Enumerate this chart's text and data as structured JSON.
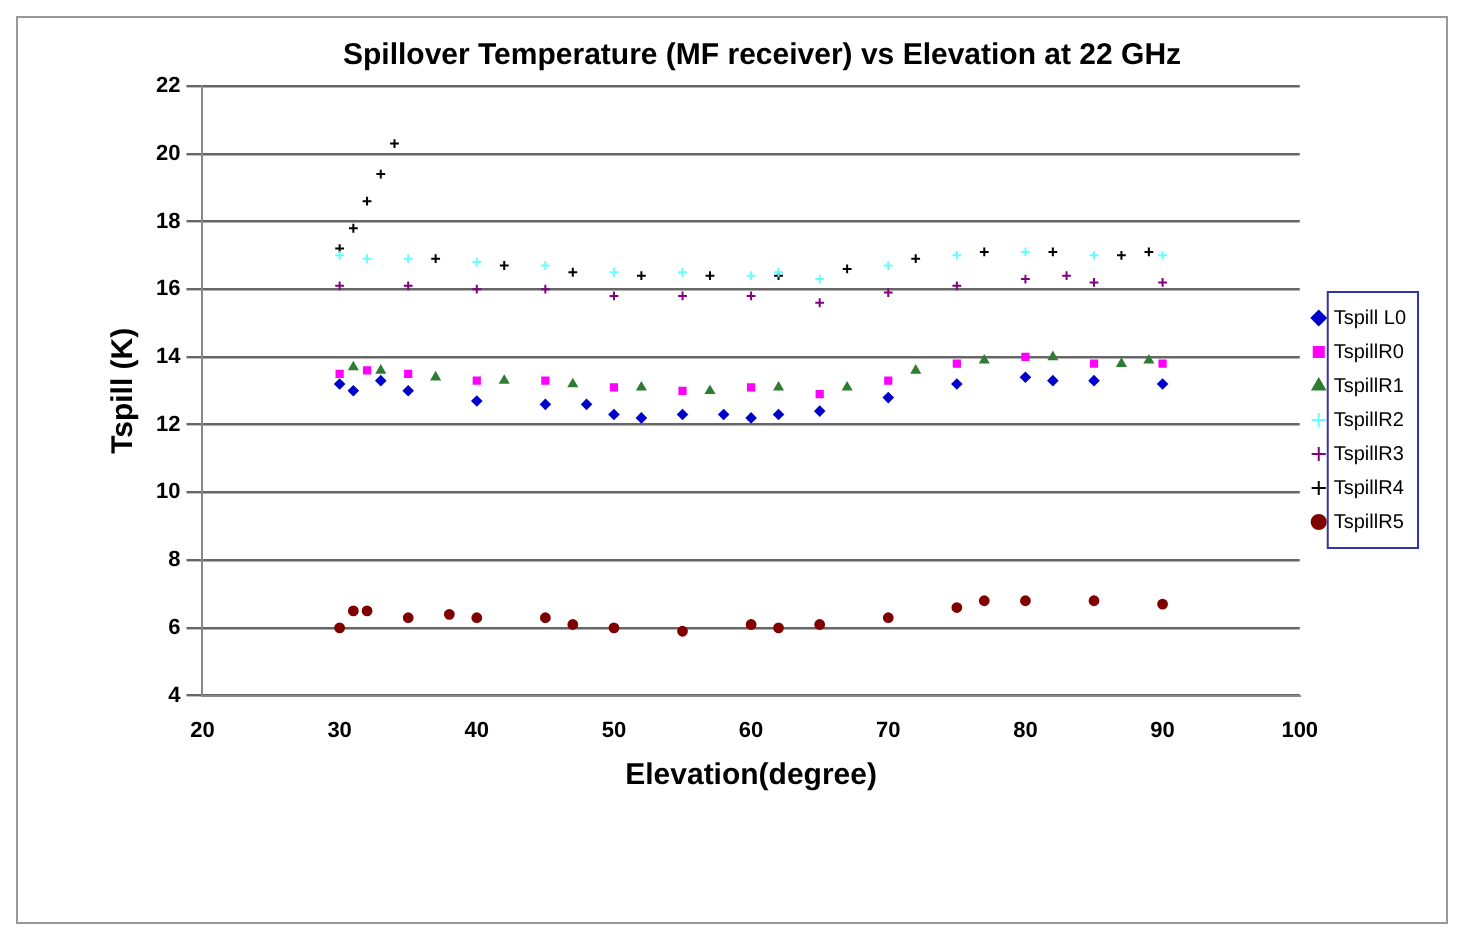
{
  "chart_data": {
    "type": "scatter",
    "title": "Spillover Temperature (MF receiver) vs Elevation at 22 GHz",
    "xlabel": "Elevation(degree)",
    "ylabel": "Tspill (K)",
    "xlim": [
      20,
      100
    ],
    "xticks": [
      20,
      30,
      40,
      50,
      60,
      70,
      80,
      90,
      100
    ],
    "ylim": [
      4,
      22
    ],
    "yticks": [
      4,
      6,
      8,
      10,
      12,
      14,
      16,
      18,
      20,
      22
    ],
    "grid": "y",
    "legend": "right",
    "series": [
      {
        "name": "Tspill L0",
        "color": "#0000cc",
        "marker": "diamond",
        "x": [
          30,
          31,
          33,
          35,
          40,
          45,
          48,
          50,
          52,
          55,
          58,
          60,
          62,
          65,
          70,
          75,
          80,
          82,
          85,
          90
        ],
        "values": [
          13.2,
          13.0,
          13.3,
          13.0,
          12.7,
          12.6,
          12.6,
          12.3,
          12.2,
          12.3,
          12.3,
          12.2,
          12.3,
          12.4,
          12.8,
          13.2,
          13.4,
          13.3,
          13.3,
          13.2
        ]
      },
      {
        "name": "TspillR0",
        "color": "#ff00ff",
        "marker": "square",
        "x": [
          30,
          32,
          35,
          40,
          45,
          50,
          55,
          60,
          65,
          70,
          75,
          80,
          85,
          90
        ],
        "values": [
          13.5,
          13.6,
          13.5,
          13.3,
          13.3,
          13.1,
          13.0,
          13.1,
          12.9,
          13.3,
          13.8,
          14.0,
          13.8,
          13.8
        ]
      },
      {
        "name": "TspillR1",
        "color": "#2e7d32",
        "marker": "triangle",
        "x": [
          31,
          33,
          37,
          42,
          47,
          52,
          57,
          62,
          67,
          72,
          77,
          82,
          87,
          89
        ],
        "values": [
          13.7,
          13.6,
          13.4,
          13.3,
          13.2,
          13.1,
          13.0,
          13.1,
          13.1,
          13.6,
          13.9,
          14.0,
          13.8,
          13.9
        ]
      },
      {
        "name": "TspillR2",
        "color": "#66ffff",
        "marker": "cross",
        "x": [
          30,
          32,
          35,
          40,
          45,
          50,
          55,
          60,
          62,
          65,
          70,
          75,
          80,
          85,
          90
        ],
        "values": [
          17.0,
          16.9,
          16.9,
          16.8,
          16.7,
          16.5,
          16.5,
          16.4,
          16.5,
          16.3,
          16.7,
          17.0,
          17.1,
          17.0,
          17.0
        ]
      },
      {
        "name": "TspillR3",
        "color": "#800080",
        "marker": "cross",
        "x": [
          30,
          35,
          40,
          45,
          50,
          55,
          60,
          65,
          70,
          75,
          80,
          83,
          85,
          90
        ],
        "values": [
          16.1,
          16.1,
          16.0,
          16.0,
          15.8,
          15.8,
          15.8,
          15.6,
          15.9,
          16.1,
          16.3,
          16.4,
          16.2,
          16.2
        ]
      },
      {
        "name": "TspillR4",
        "color": "#000000",
        "marker": "cross",
        "x": [
          30,
          31,
          32,
          33,
          34,
          37,
          42,
          47,
          52,
          57,
          62,
          67,
          72,
          77,
          82,
          87,
          89
        ],
        "values": [
          17.2,
          17.8,
          18.6,
          19.4,
          20.3,
          16.9,
          16.7,
          16.5,
          16.4,
          16.4,
          16.4,
          16.6,
          16.9,
          17.1,
          17.1,
          17.0,
          17.1
        ]
      },
      {
        "name": "TspillR5",
        "color": "#800000",
        "marker": "circle",
        "x": [
          30,
          31,
          32,
          35,
          38,
          40,
          45,
          47,
          50,
          55,
          60,
          62,
          65,
          70,
          75,
          77,
          80,
          85,
          90
        ],
        "values": [
          6.0,
          6.5,
          6.5,
          6.3,
          6.4,
          6.3,
          6.3,
          6.1,
          6.0,
          5.9,
          6.1,
          6.0,
          6.1,
          6.3,
          6.6,
          6.8,
          6.8,
          6.8,
          6.7
        ]
      }
    ]
  }
}
